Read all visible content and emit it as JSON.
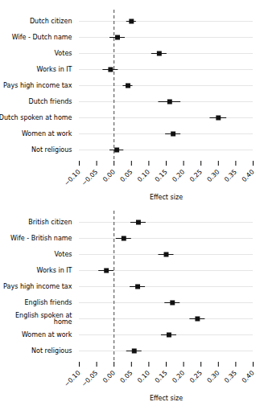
{
  "chart_data": [
    {
      "type": "errorbar",
      "orientation": "horizontal",
      "categories": [
        "Dutch citizen",
        "Wife - Dutch name",
        "Votes",
        "Works in IT",
        "Pays high income tax",
        "Dutch friends",
        "Dutch spoken at home",
        "Women at work",
        "Not religious"
      ],
      "values": [
        0.05,
        0.01,
        0.13,
        -0.01,
        0.04,
        0.16,
        0.3,
        0.17,
        0.008
      ],
      "ci_lo": [
        0.036,
        -0.012,
        0.108,
        -0.032,
        0.026,
        0.128,
        0.276,
        0.148,
        -0.012
      ],
      "ci_hi": [
        0.064,
        0.032,
        0.152,
        0.012,
        0.054,
        0.192,
        0.324,
        0.192,
        0.028
      ],
      "xlim": [
        -0.1,
        0.4
      ],
      "xticks": [
        {
          "value": -0.1,
          "label": "−0.10"
        },
        {
          "value": -0.05,
          "label": "−0.05"
        },
        {
          "value": 0.0,
          "label": "0.00"
        },
        {
          "value": 0.05,
          "label": "0.05"
        },
        {
          "value": 0.1,
          "label": "0.10"
        },
        {
          "value": 0.15,
          "label": "0.15"
        },
        {
          "value": 0.2,
          "label": "0.20"
        },
        {
          "value": 0.25,
          "label": "0.25"
        },
        {
          "value": 0.3,
          "label": "0.30"
        },
        {
          "value": 0.35,
          "label": "0.35"
        },
        {
          "value": 0.4,
          "label": "0.40"
        }
      ],
      "xlabel": "Effect size",
      "color": "#111111",
      "marker": "square",
      "grid": true
    },
    {
      "type": "errorbar",
      "orientation": "horizontal",
      "categories": [
        "British citizen",
        "Wife - British name",
        "Votes",
        "Works in IT",
        "Pays high income tax",
        "English friends",
        "English spoken at\nhome",
        "Women at work",
        "Not religious"
      ],
      "values": [
        0.07,
        0.028,
        0.15,
        -0.022,
        0.068,
        0.168,
        0.24,
        0.158,
        0.058
      ],
      "ci_lo": [
        0.048,
        0.006,
        0.128,
        -0.044,
        0.046,
        0.146,
        0.218,
        0.136,
        0.036
      ],
      "ci_hi": [
        0.092,
        0.05,
        0.172,
        0.0,
        0.09,
        0.19,
        0.262,
        0.18,
        0.08
      ],
      "xlim": [
        -0.1,
        0.4
      ],
      "xticks": [
        {
          "value": -0.1,
          "label": "−0.10"
        },
        {
          "value": -0.05,
          "label": "−0.05"
        },
        {
          "value": 0.0,
          "label": "0.00"
        },
        {
          "value": 0.05,
          "label": "0.05"
        },
        {
          "value": 0.1,
          "label": "0.10"
        },
        {
          "value": 0.15,
          "label": "0.15"
        },
        {
          "value": 0.2,
          "label": "0.20"
        },
        {
          "value": 0.25,
          "label": "0.25"
        },
        {
          "value": 0.3,
          "label": "0.30"
        },
        {
          "value": 0.35,
          "label": "0.35"
        },
        {
          "value": 0.4,
          "label": "0.40"
        }
      ],
      "xlabel": "Effect size",
      "color": "#111111",
      "marker": "square",
      "grid": true
    }
  ]
}
